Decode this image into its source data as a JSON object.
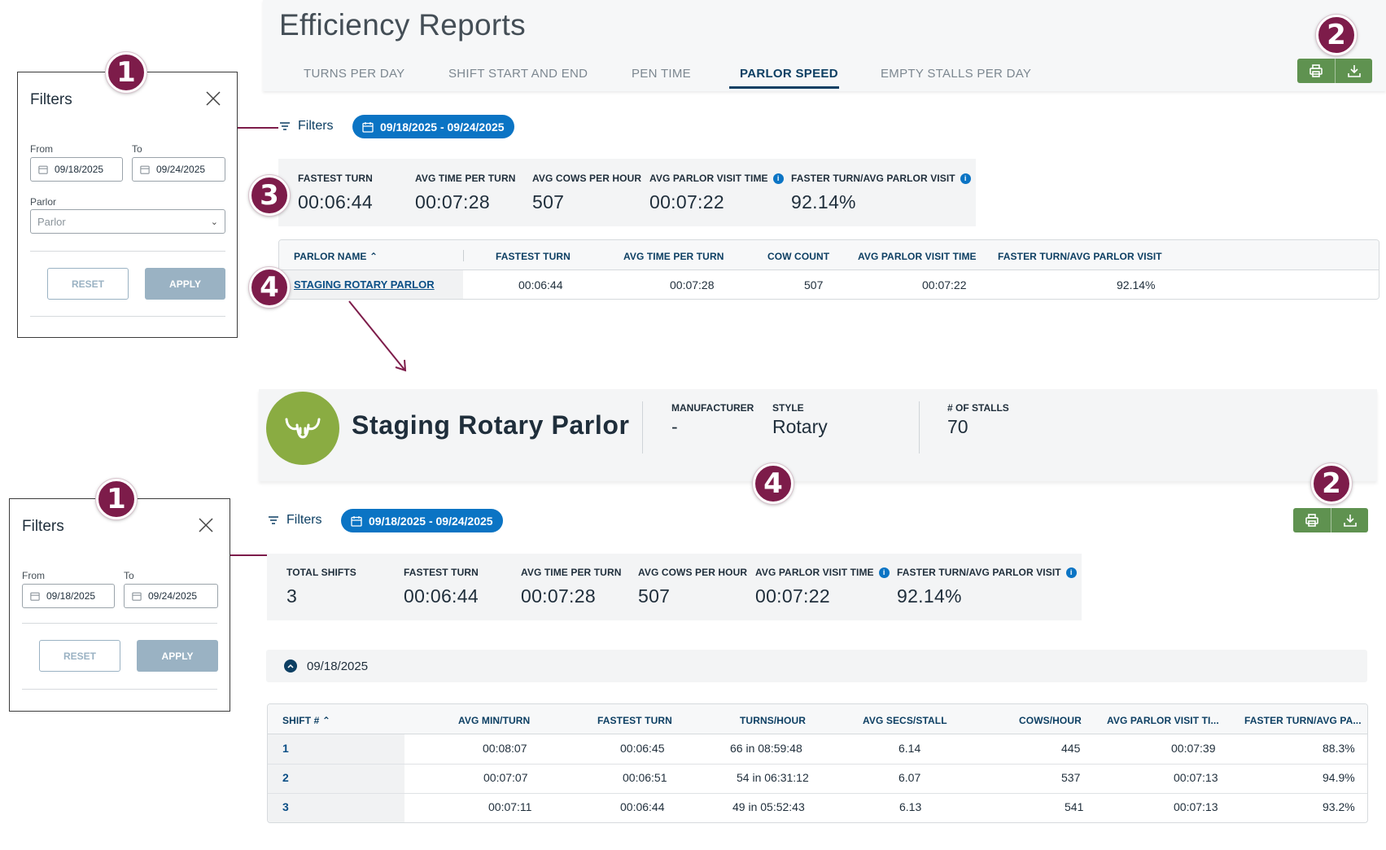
{
  "page_title": "Efficiency Reports",
  "tabs": [
    {
      "label": "TURNS PER DAY"
    },
    {
      "label": "SHIFT START AND END"
    },
    {
      "label": "PEN TIME"
    },
    {
      "label": "PARLOR SPEED"
    },
    {
      "label": "EMPTY STALLS PER DAY"
    }
  ],
  "active_tab": "PARLOR SPEED",
  "icons": {
    "print": "printer-icon",
    "download": "download-icon",
    "filter": "filter-lines-icon",
    "calendar": "calendar-icon"
  },
  "colors": {
    "accent_blue": "#0b74c4",
    "navy": "#0d3f63",
    "action_green": "#5f9250",
    "callout": "#7d1c4a",
    "parlor_avatar": "#8aac42"
  },
  "callouts": {
    "one": "1",
    "two": "2",
    "three": "3",
    "four": "4"
  },
  "filters": {
    "label": "Filters",
    "date_range": "09/18/2025 - 09/24/2025"
  },
  "summary": {
    "stats": [
      {
        "label": "FASTEST TURN",
        "value": "00:06:44"
      },
      {
        "label": "AVG TIME PER TURN",
        "value": "00:07:28"
      },
      {
        "label": "AVG COWS PER HOUR",
        "value": "507"
      },
      {
        "label": "AVG PARLOR VISIT TIME",
        "value": "00:07:22"
      },
      {
        "label": "FASTER TURN/AVG PARLOR VISIT",
        "value": "92.14%"
      }
    ]
  },
  "parlor_table": {
    "columns": [
      "PARLOR NAME",
      "FASTEST TURN",
      "AVG TIME PER TURN",
      "COW COUNT",
      "AVG PARLOR VISIT TIME",
      "FASTER TURN/AVG PARLOR VISIT"
    ],
    "rows": [
      [
        "STAGING ROTARY PARLOR",
        "00:06:44",
        "00:07:28",
        "507",
        "00:07:22",
        "92.14%"
      ]
    ]
  },
  "filter_panel_top": {
    "title": "Filters",
    "from_label": "From",
    "from_value": "09/18/2025",
    "to_label": "To",
    "to_value": "09/24/2025",
    "parlor_label": "Parlor",
    "parlor_placeholder": "Parlor",
    "reset": "RESET",
    "apply": "APPLY"
  },
  "parlor_detail": {
    "name": "Staging Rotary Parlor",
    "manufacturer_label": "MANUFACTURER",
    "manufacturer_value": "-",
    "style_label": "STYLE",
    "style_value": "Rotary",
    "stalls_label": "# OF STALLS",
    "stalls_value": "70"
  },
  "detail_summary": {
    "stats": [
      {
        "label": "TOTAL SHIFTS",
        "value": "3"
      },
      {
        "label": "FASTEST TURN",
        "value": "00:06:44"
      },
      {
        "label": "AVG TIME PER TURN",
        "value": "00:07:28"
      },
      {
        "label": "AVG COWS PER HOUR",
        "value": "507"
      },
      {
        "label": "AVG PARLOR VISIT TIME",
        "value": "00:07:22"
      },
      {
        "label": "FASTER TURN/AVG PARLOR VISIT",
        "value": "92.14%"
      }
    ]
  },
  "filter_panel_bottom": {
    "title": "Filters",
    "from_label": "From",
    "from_value": "09/18/2025",
    "to_label": "To",
    "to_value": "09/24/2025",
    "reset": "RESET",
    "apply": "APPLY"
  },
  "date_group": "09/18/2025",
  "shift_table": {
    "columns": [
      "SHIFT #",
      "AVG MIN/TURN",
      "FASTEST TURN",
      "TURNS/HOUR",
      "AVG SECS/STALL",
      "COWS/HOUR",
      "AVG PARLOR VISIT TI...",
      "FASTER TURN/AVG PA..."
    ],
    "rows": [
      [
        "1",
        "00:08:07",
        "00:06:45",
        "66 in 08:59:48",
        "6.14",
        "445",
        "00:07:39",
        "88.3%"
      ],
      [
        "2",
        "00:07:07",
        "00:06:51",
        "54 in 06:31:12",
        "6.07",
        "537",
        "00:07:13",
        "94.9%"
      ],
      [
        "3",
        "00:07:11",
        "00:06:44",
        "49 in 05:52:43",
        "6.13",
        "541",
        "00:07:13",
        "93.2%"
      ]
    ]
  }
}
